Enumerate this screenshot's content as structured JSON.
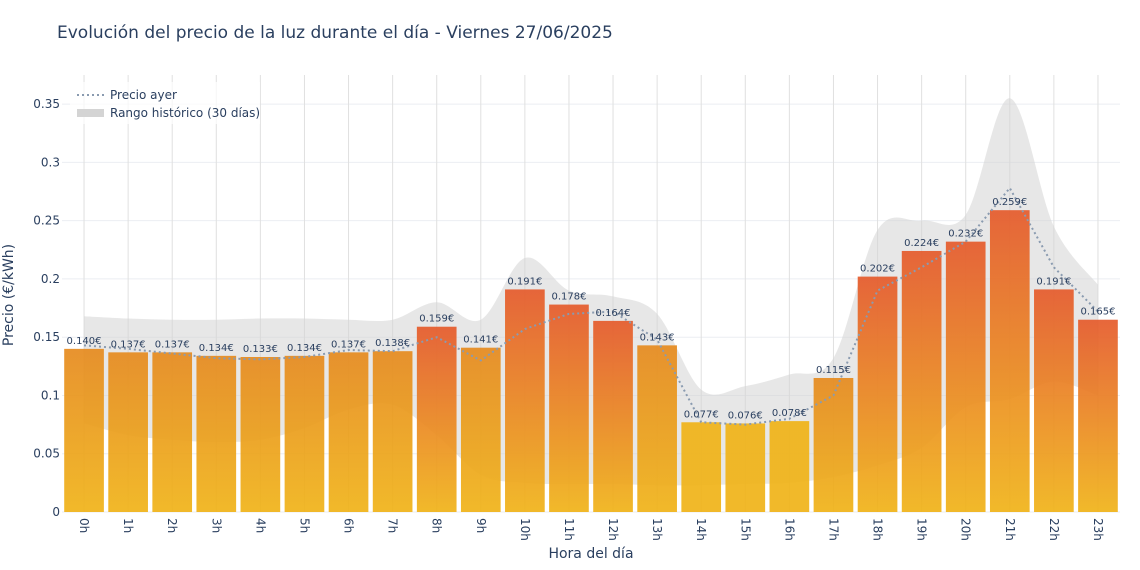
{
  "chart_data": {
    "type": "bar",
    "title": "Evolución del precio de la luz durante el día - Viernes 27/06/2025",
    "xlabel": "Hora del día",
    "ylabel": "Precio (€/kWh)",
    "ylim": [
      0,
      0.375
    ],
    "yticks": [
      0,
      0.05,
      0.1,
      0.15,
      0.2,
      0.25,
      0.3,
      0.35
    ],
    "ytick_labels": [
      "0",
      "0.05",
      "0.1",
      "0.15",
      "0.2",
      "0.25",
      "0.3",
      "0.35"
    ],
    "grid": true,
    "legend_position": "top-left",
    "categories": [
      "0h",
      "1h",
      "2h",
      "3h",
      "4h",
      "5h",
      "6h",
      "7h",
      "8h",
      "9h",
      "10h",
      "11h",
      "12h",
      "13h",
      "14h",
      "15h",
      "16h",
      "17h",
      "18h",
      "19h",
      "20h",
      "21h",
      "22h",
      "23h"
    ],
    "values": [
      0.14,
      0.137,
      0.137,
      0.134,
      0.133,
      0.134,
      0.137,
      0.138,
      0.159,
      0.141,
      0.191,
      0.178,
      0.164,
      0.143,
      0.077,
      0.076,
      0.078,
      0.115,
      0.202,
      0.224,
      0.232,
      0.259,
      0.191,
      0.165
    ],
    "value_labels": [
      "0.140€",
      "0.137€",
      "0.137€",
      "0.134€",
      "0.133€",
      "0.134€",
      "0.137€",
      "0.138€",
      "0.159€",
      "0.141€",
      "0.191€",
      "0.178€",
      "0.164€",
      "0.143€",
      "0.077€",
      "0.076€",
      "0.078€",
      "0.115€",
      "0.202€",
      "0.224€",
      "0.232€",
      "0.259€",
      "0.191€",
      "0.165€"
    ],
    "series": [
      {
        "name": "Precio ayer",
        "style": "dotted-line",
        "values": [
          0.143,
          0.14,
          0.136,
          0.132,
          0.131,
          0.133,
          0.139,
          0.138,
          0.15,
          0.13,
          0.157,
          0.17,
          0.172,
          0.148,
          0.077,
          0.075,
          0.08,
          0.1,
          0.19,
          0.21,
          0.232,
          0.278,
          0.21,
          0.172
        ]
      },
      {
        "name": "Rango histórico (30 días)",
        "style": "band",
        "upper": [
          0.168,
          0.166,
          0.165,
          0.165,
          0.166,
          0.166,
          0.165,
          0.165,
          0.18,
          0.165,
          0.218,
          0.19,
          0.185,
          0.17,
          0.105,
          0.108,
          0.118,
          0.132,
          0.242,
          0.25,
          0.255,
          0.355,
          0.245,
          0.195
        ],
        "lower": [
          0.076,
          0.066,
          0.062,
          0.06,
          0.062,
          0.072,
          0.088,
          0.092,
          0.066,
          0.032,
          0.025,
          0.024,
          0.024,
          0.023,
          0.023,
          0.024,
          0.025,
          0.03,
          0.04,
          0.055,
          0.09,
          0.097,
          0.112,
          0.1
        ]
      }
    ],
    "colors": {
      "bar_low": "#f0b318",
      "bar_mid": "#e68a1e",
      "bar_high": "#e55a2b",
      "prev_line": "#8a9bb0",
      "band": "#d4d4d4",
      "grid": "#ebeef2",
      "text": "#2a3f5f"
    }
  }
}
